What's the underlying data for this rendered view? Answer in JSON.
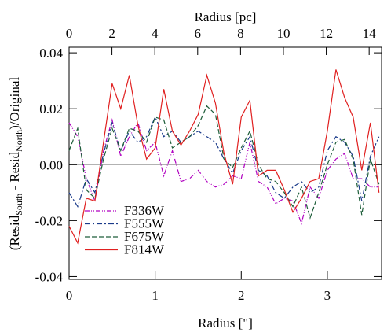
{
  "chart_data": {
    "type": "line",
    "xlabel": "Radius [\"]",
    "x2label": "Radius [pc]",
    "ylabel_parts": [
      "(Resid",
      "South",
      " - Resid",
      "North",
      ")/Original"
    ],
    "xlim": [
      0,
      3.63
    ],
    "xticks": [
      0,
      1,
      2,
      3
    ],
    "x2lim": [
      0,
      14.58
    ],
    "x2ticks": [
      0,
      2,
      4,
      6,
      8,
      10,
      12,
      14
    ],
    "ylim": [
      -0.041,
      0.042
    ],
    "yticks": [
      {
        "value": -0.04,
        "label": "-0.04"
      },
      -0.02,
      {
        "value": 0,
        "label": "0.00"
      },
      0.02,
      0.04
    ],
    "reference_line": 0,
    "x": [
      0,
      0.1,
      0.2,
      0.3,
      0.4,
      0.5,
      0.6,
      0.7,
      0.8,
      0.9,
      1.0,
      1.1,
      1.2,
      1.3,
      1.4,
      1.5,
      1.6,
      1.7,
      1.8,
      1.9,
      2.0,
      2.1,
      2.2,
      2.3,
      2.4,
      2.5,
      2.6,
      2.7,
      2.8,
      2.9,
      3.0,
      3.1,
      3.2,
      3.3,
      3.4,
      3.5,
      3.6
    ],
    "series": [
      {
        "name": "F336W",
        "color": "#b000c0",
        "dash": "6,2,1,2,1,2",
        "values": [
          0.015,
          0.01,
          -0.005,
          -0.013,
          0.005,
          0.016,
          0.003,
          0.01,
          0.015,
          0.005,
          0.008,
          -0.004,
          0.005,
          -0.006,
          -0.005,
          -0.002,
          -0.006,
          -0.008,
          -0.007,
          -0.004,
          -0.005,
          0.008,
          -0.006,
          -0.008,
          -0.014,
          -0.012,
          -0.013,
          -0.021,
          -0.008,
          -0.012,
          -0.002,
          0.002,
          0.004,
          -0.005,
          -0.005,
          -0.008,
          -0.008
        ]
      },
      {
        "name": "F555W",
        "color": "#1a3a8a",
        "dash": "7,3,2,3",
        "values": [
          -0.01,
          -0.015,
          -0.005,
          -0.01,
          0.004,
          0.015,
          0.005,
          0.012,
          0.008,
          0.01,
          0.017,
          0.01,
          0.012,
          0.008,
          0.01,
          0.012,
          0.01,
          0.008,
          0.002,
          -0.003,
          0.005,
          0.01,
          -0.002,
          -0.004,
          -0.01,
          -0.012,
          -0.008,
          -0.006,
          -0.01,
          -0.008,
          0.005,
          0.01,
          0.008,
          0.003,
          -0.013,
          0.003,
          0.01
        ]
      },
      {
        "name": "F675W",
        "color": "#1e5e3a",
        "dash": "6,3",
        "values": [
          0.005,
          0.013,
          -0.009,
          -0.012,
          0.002,
          0.013,
          0.005,
          0.013,
          0.012,
          0.008,
          0.017,
          0.016,
          0.006,
          0.008,
          0.01,
          0.014,
          0.021,
          0.018,
          0.002,
          -0.001,
          0.006,
          0.012,
          0.0,
          -0.005,
          -0.006,
          -0.01,
          -0.015,
          -0.008,
          -0.019,
          -0.01,
          0.0,
          0.008,
          0.009,
          0.002,
          -0.018,
          0.002,
          -0.007
        ]
      },
      {
        "name": "F814W",
        "color": "#e02020",
        "dash": "none",
        "values": [
          -0.022,
          -0.028,
          -0.012,
          -0.013,
          0.008,
          0.029,
          0.02,
          0.032,
          0.014,
          0.002,
          0.006,
          0.027,
          0.012,
          0.007,
          0.012,
          0.018,
          0.032,
          0.022,
          0.004,
          -0.007,
          0.017,
          0.023,
          -0.004,
          -0.002,
          -0.002,
          -0.009,
          -0.017,
          -0.012,
          -0.006,
          -0.005,
          0.012,
          0.034,
          0.024,
          0.017,
          -0.002,
          0.015,
          -0.01
        ]
      }
    ]
  }
}
